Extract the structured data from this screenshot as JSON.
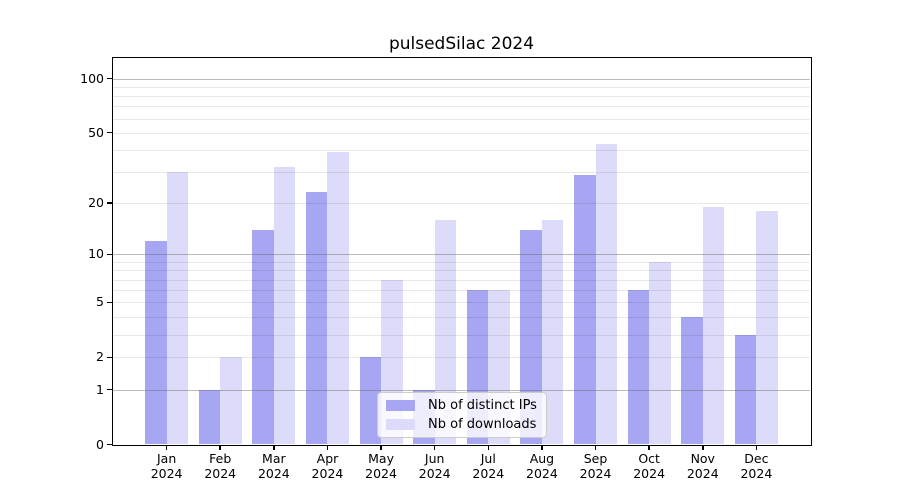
{
  "title": "pulsedSilac 2024",
  "chart_data": {
    "type": "bar",
    "title": "pulsedSilac 2024",
    "categories": [
      "Jan 2024",
      "Feb 2024",
      "Mar 2024",
      "Apr 2024",
      "May 2024",
      "Jun 2024",
      "Jul 2024",
      "Aug 2024",
      "Sep 2024",
      "Oct 2024",
      "Nov 2024",
      "Dec 2024"
    ],
    "series": [
      {
        "name": "Nb of distinct IPs",
        "color": "#a6a6f2",
        "values": [
          12,
          1,
          14,
          23,
          2,
          1,
          6,
          14,
          29,
          6,
          4,
          3
        ]
      },
      {
        "name": "Nb of downloads",
        "color": "#dcdcfa",
        "values": [
          30,
          2,
          32,
          39,
          7,
          16,
          6,
          16,
          43,
          9,
          19,
          18
        ]
      }
    ],
    "xlabel": "",
    "ylabel": "",
    "y_scale": "log1p",
    "ylim": [
      0,
      129
    ],
    "y_tick_values": [
      0,
      1,
      2,
      5,
      10,
      20,
      50,
      100
    ],
    "y_tick_labels": [
      "0",
      "1",
      "2",
      "5",
      "10",
      "20",
      "50",
      "100"
    ],
    "y_major_gridlines": [
      1,
      10,
      100
    ],
    "y_minor_gridlines": [
      2,
      3,
      4,
      5,
      6,
      7,
      8,
      9,
      20,
      30,
      40,
      50,
      60,
      70,
      80,
      90
    ],
    "grid": true,
    "legend_position": "lower center"
  }
}
